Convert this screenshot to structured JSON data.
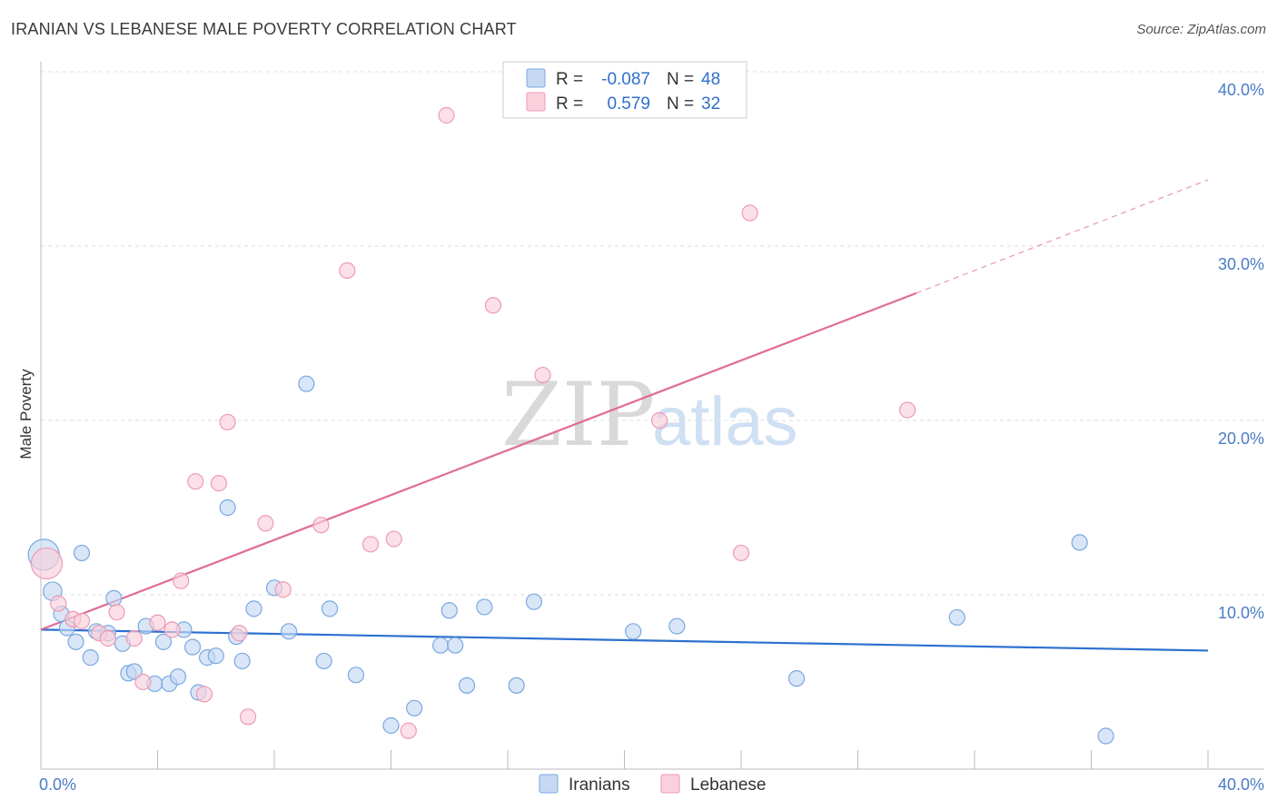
{
  "title": "IRANIAN VS LEBANESE MALE POVERTY CORRELATION CHART",
  "source": "Source: ZipAtlas.com",
  "watermark": {
    "part1": "ZIP",
    "part2": "atlas"
  },
  "colors": {
    "iranians_fill": "#c5d9f3",
    "iranians_stroke": "#7aa8e0",
    "iranians_line": "#2d70d0",
    "lebanese_fill": "#f9d0dc",
    "lebanese_stroke": "#ee9ab4",
    "lebanese_line": "#e06a95",
    "grid": "#dddddd",
    "tick_label": "#4a7cc7"
  },
  "legend": {
    "rows": [
      {
        "r_label": "R =",
        "r_value": "-0.087",
        "n_label": "N =",
        "n_value": "48"
      },
      {
        "r_label": "R =",
        "r_value": "0.579",
        "n_label": "N =",
        "n_value": "32"
      }
    ]
  },
  "chart_data": {
    "type": "scatter",
    "title": "IRANIAN VS LEBANESE MALE POVERTY CORRELATION CHART",
    "xlabel": "",
    "ylabel": "Male Poverty",
    "xlim": [
      0,
      40
    ],
    "ylim": [
      0,
      40
    ],
    "x_tick_labels": [
      "0.0%",
      "40.0%"
    ],
    "y_ticks": [
      10,
      20,
      30,
      40
    ],
    "y_tick_labels": [
      "10.0%",
      "20.0%",
      "30.0%",
      "40.0%"
    ],
    "grid": "horizontal-dashed",
    "legend_position": "top-center",
    "series": [
      {
        "name": "Iranians",
        "r": -0.087,
        "n": 48,
        "trend": {
          "x": [
            0,
            40
          ],
          "y": [
            8.0,
            6.8
          ]
        },
        "points": [
          [
            0.1,
            12.3,
            2.0
          ],
          [
            0.4,
            10.2,
            1.2
          ],
          [
            0.7,
            8.9,
            1.0
          ],
          [
            0.9,
            8.1,
            1.0
          ],
          [
            1.2,
            7.3,
            1.0
          ],
          [
            1.4,
            12.4,
            1.0
          ],
          [
            1.7,
            6.4,
            1.0
          ],
          [
            1.9,
            7.9,
            1.0
          ],
          [
            2.3,
            7.8,
            1.0
          ],
          [
            2.5,
            9.8,
            1.0
          ],
          [
            2.8,
            7.2,
            1.0
          ],
          [
            3.0,
            5.5,
            1.0
          ],
          [
            3.2,
            5.6,
            1.0
          ],
          [
            3.6,
            8.2,
            1.0
          ],
          [
            3.9,
            4.9,
            1.0
          ],
          [
            4.2,
            7.3,
            1.0
          ],
          [
            4.4,
            4.9,
            1.0
          ],
          [
            4.7,
            5.3,
            1.0
          ],
          [
            4.9,
            8.0,
            1.0
          ],
          [
            5.2,
            7.0,
            1.0
          ],
          [
            5.4,
            4.4,
            1.0
          ],
          [
            5.7,
            6.4,
            1.0
          ],
          [
            6.0,
            6.5,
            1.0
          ],
          [
            6.4,
            15.0,
            1.0
          ],
          [
            6.7,
            7.6,
            1.0
          ],
          [
            6.9,
            6.2,
            1.0
          ],
          [
            7.3,
            9.2,
            1.0
          ],
          [
            8.0,
            10.4,
            1.0
          ],
          [
            8.5,
            7.9,
            1.0
          ],
          [
            9.1,
            22.1,
            1.0
          ],
          [
            9.7,
            6.2,
            1.0
          ],
          [
            9.9,
            9.2,
            1.0
          ],
          [
            10.8,
            5.4,
            1.0
          ],
          [
            12.0,
            2.5,
            1.0
          ],
          [
            12.8,
            3.5,
            1.0
          ],
          [
            13.7,
            7.1,
            1.0
          ],
          [
            14.0,
            9.1,
            1.0
          ],
          [
            14.2,
            7.1,
            1.0
          ],
          [
            14.6,
            4.8,
            1.0
          ],
          [
            15.2,
            9.3,
            1.0
          ],
          [
            16.3,
            4.8,
            1.0
          ],
          [
            16.9,
            9.6,
            1.0
          ],
          [
            20.3,
            7.9,
            1.0
          ],
          [
            21.8,
            8.2,
            1.0
          ],
          [
            25.9,
            5.2,
            1.0
          ],
          [
            31.4,
            8.7,
            1.0
          ],
          [
            35.6,
            13.0,
            1.0
          ],
          [
            36.5,
            1.9,
            1.0
          ]
        ]
      },
      {
        "name": "Lebanese",
        "r": 0.579,
        "n": 32,
        "trend": {
          "x": [
            0,
            30
          ],
          "y": [
            8.0,
            27.3
          ]
        },
        "trend_dashed": {
          "x": [
            30,
            40
          ],
          "y": [
            27.3,
            33.8
          ]
        },
        "points": [
          [
            0.2,
            11.8,
            2.0
          ],
          [
            0.6,
            9.5,
            1.0
          ],
          [
            1.1,
            8.6,
            1.0
          ],
          [
            1.4,
            8.5,
            1.0
          ],
          [
            2.0,
            7.8,
            1.0
          ],
          [
            2.3,
            7.5,
            1.0
          ],
          [
            2.6,
            9.0,
            1.0
          ],
          [
            3.2,
            7.5,
            1.0
          ],
          [
            3.5,
            5.0,
            1.0
          ],
          [
            4.0,
            8.4,
            1.0
          ],
          [
            4.5,
            8.0,
            1.0
          ],
          [
            4.8,
            10.8,
            1.0
          ],
          [
            5.3,
            16.5,
            1.0
          ],
          [
            5.6,
            4.3,
            1.0
          ],
          [
            6.1,
            16.4,
            1.0
          ],
          [
            6.4,
            19.9,
            1.0
          ],
          [
            6.8,
            7.8,
            1.0
          ],
          [
            7.1,
            3.0,
            1.0
          ],
          [
            7.7,
            14.1,
            1.0
          ],
          [
            8.3,
            10.3,
            1.0
          ],
          [
            9.6,
            14.0,
            1.0
          ],
          [
            10.5,
            28.6,
            1.0
          ],
          [
            11.3,
            12.9,
            1.0
          ],
          [
            12.1,
            13.2,
            1.0
          ],
          [
            12.6,
            2.2,
            1.0
          ],
          [
            13.9,
            37.5,
            1.0
          ],
          [
            15.5,
            26.6,
            1.0
          ],
          [
            17.2,
            22.6,
            1.0
          ],
          [
            21.2,
            20.0,
            1.0
          ],
          [
            24.0,
            12.4,
            1.0
          ],
          [
            24.3,
            31.9,
            1.0
          ],
          [
            29.7,
            20.6,
            1.0
          ]
        ]
      }
    ]
  }
}
